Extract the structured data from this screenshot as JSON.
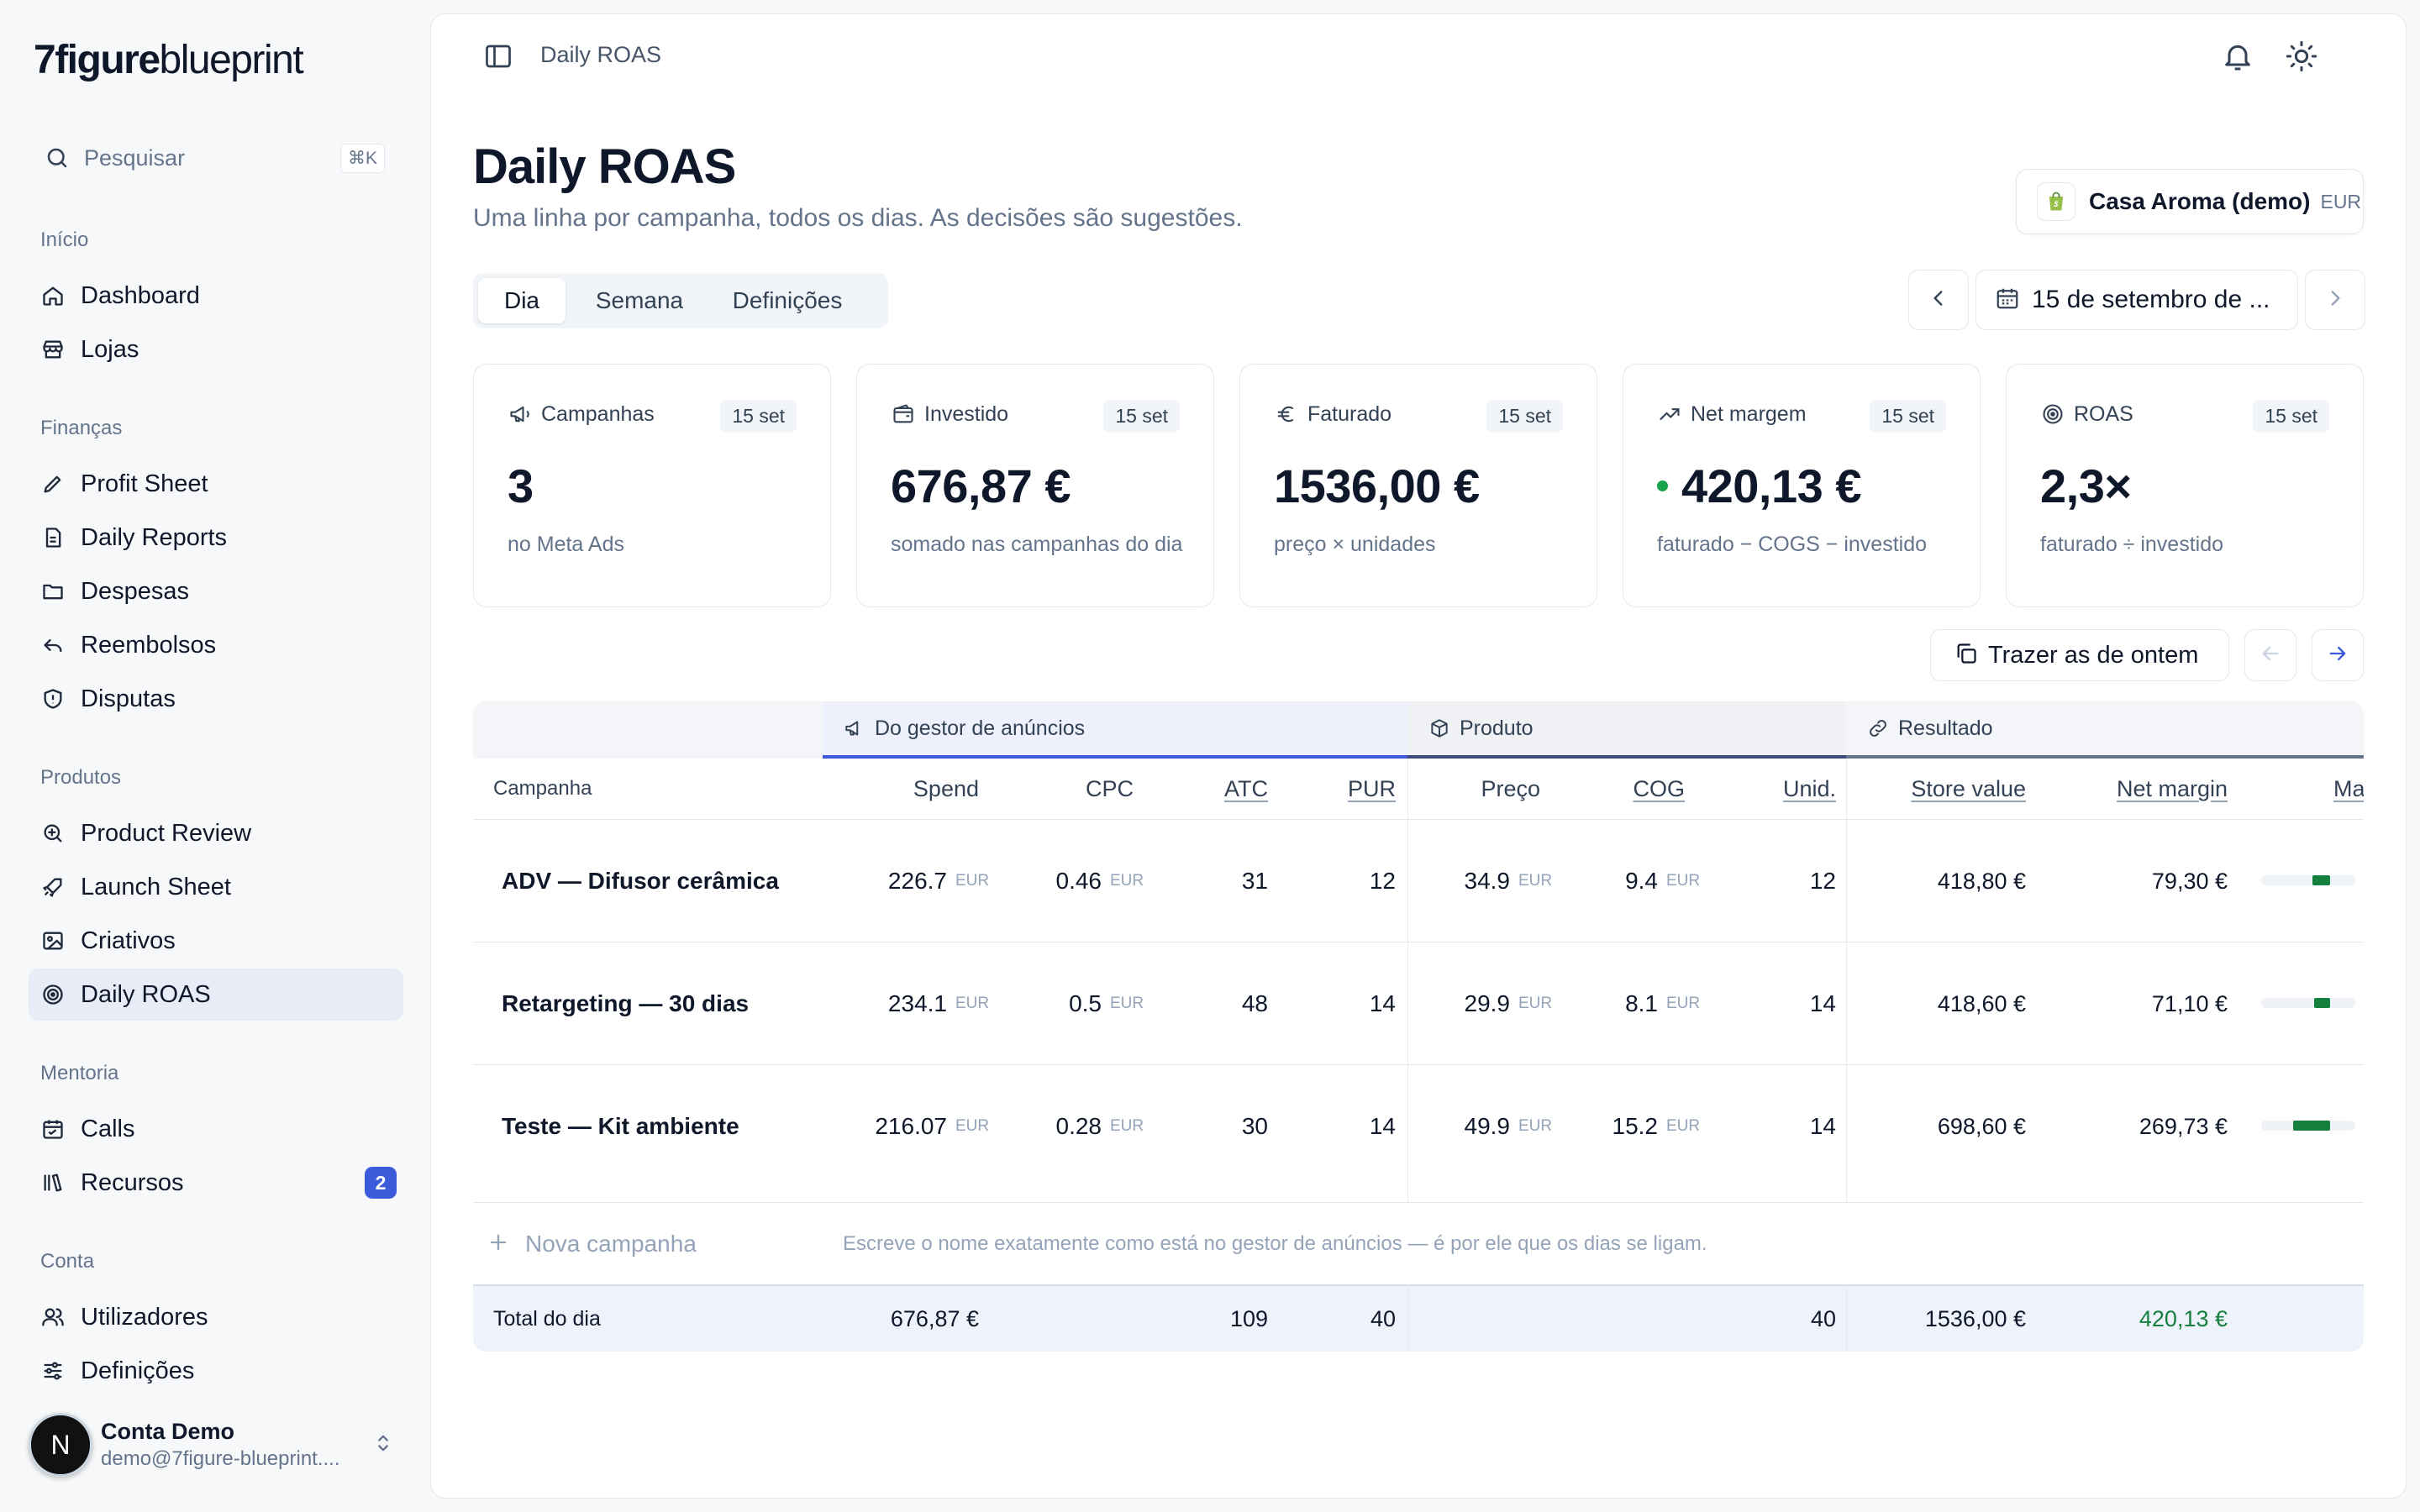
{
  "brand": {
    "bold": "7figure",
    "light": "blueprint"
  },
  "search": {
    "placeholder": "Pesquisar",
    "shortcut": "⌘K"
  },
  "sidebar": {
    "sections": [
      {
        "title": "Início",
        "items": [
          {
            "label": "Dashboard",
            "icon": "home-icon"
          },
          {
            "label": "Lojas",
            "icon": "store-icon"
          }
        ]
      },
      {
        "title": "Finanças",
        "items": [
          {
            "label": "Profit Sheet",
            "icon": "pencil-icon"
          },
          {
            "label": "Daily Reports",
            "icon": "file-icon"
          },
          {
            "label": "Despesas",
            "icon": "folder-icon"
          },
          {
            "label": "Reembolsos",
            "icon": "undo-icon"
          },
          {
            "label": "Disputas",
            "icon": "shield-icon"
          }
        ]
      },
      {
        "title": "Produtos",
        "items": [
          {
            "label": "Product Review",
            "icon": "search-zoom-icon"
          },
          {
            "label": "Launch Sheet",
            "icon": "rocket-icon"
          },
          {
            "label": "Criativos",
            "icon": "image-icon"
          },
          {
            "label": "Daily ROAS",
            "icon": "target-icon",
            "active": true
          }
        ]
      },
      {
        "title": "Mentoria",
        "items": [
          {
            "label": "Calls",
            "icon": "calendar-icon"
          },
          {
            "label": "Recursos",
            "icon": "library-icon",
            "badge": "2"
          }
        ]
      },
      {
        "title": "Conta",
        "items": [
          {
            "label": "Utilizadores",
            "icon": "users-icon"
          },
          {
            "label": "Definições",
            "icon": "sliders-icon"
          }
        ]
      }
    ]
  },
  "user": {
    "initial": "N",
    "name": "Conta Demo",
    "email": "demo@7figure-blueprint...."
  },
  "topbar": {
    "title": "Daily ROAS"
  },
  "page": {
    "title": "Daily ROAS",
    "subtitle": "Uma linha por campanha, todos os dias. As decisões são sugestões."
  },
  "store": {
    "name": "Casa Aroma (demo)",
    "currency": "EUR"
  },
  "tabs": [
    {
      "label": "Dia",
      "active": true
    },
    {
      "label": "Semana"
    },
    {
      "label": "Definições"
    }
  ],
  "date": {
    "label": "15 de setembro de ..."
  },
  "cards": [
    {
      "label": "Campanhas",
      "badge": "15 set",
      "value": "3",
      "sub": "no Meta Ads",
      "icon": "megaphone-icon"
    },
    {
      "label": "Investido",
      "badge": "15 set",
      "value": "676,87 €",
      "sub": "somado nas campanhas do dia",
      "icon": "wallet-icon"
    },
    {
      "label": "Faturado",
      "badge": "15 set",
      "value": "1536,00 €",
      "sub": "preço × unidades",
      "icon": "euro-icon"
    },
    {
      "label": "Net margem",
      "badge": "15 set",
      "value": "420,13 €",
      "sub": "faturado − COGS − investido",
      "icon": "trend-up-icon"
    },
    {
      "label": "ROAS",
      "badge": "15 set",
      "value": "2,3×",
      "sub": "faturado ÷ investido",
      "icon": "target-icon"
    }
  ],
  "actions": {
    "bring_yesterday": "Trazer as de ontem"
  },
  "table": {
    "groups": {
      "ads": "Do gestor de anúncios",
      "product": "Produto",
      "result": "Resultado"
    },
    "columns": {
      "campaign": "Campanha",
      "spend": "Spend",
      "cpc": "CPC",
      "atc": "ATC",
      "pur": "PUR",
      "price": "Preço",
      "cog": "COG",
      "units": "Unid.",
      "store_value": "Store value",
      "net_margin": "Net margin",
      "margin_short": "Ma"
    },
    "currency": "EUR",
    "rows": [
      {
        "name": "ADV — Difusor cerâmica",
        "spend": "226.7",
        "cpc": "0.46",
        "atc": "31",
        "pur": "12",
        "price": "34.9",
        "cog": "9.4",
        "units": "12",
        "store_value": "418,80 €",
        "net_margin": "79,30 €",
        "margin_fraction": 0.19
      },
      {
        "name": "Retargeting — 30 dias",
        "spend": "234.1",
        "cpc": "0.5",
        "atc": "48",
        "pur": "14",
        "price": "29.9",
        "cog": "8.1",
        "units": "14",
        "store_value": "418,60 €",
        "net_margin": "71,10 €",
        "margin_fraction": 0.17
      },
      {
        "name": "Teste — Kit ambiente",
        "spend": "216.07",
        "cpc": "0.28",
        "atc": "30",
        "pur": "14",
        "price": "49.9",
        "cog": "15.2",
        "units": "14",
        "store_value": "698,60 €",
        "net_margin": "269,73 €",
        "margin_fraction": 0.39
      }
    ],
    "new_row": {
      "label": "Nova campanha",
      "hint": "Escreve o nome exatamente como está no gestor de anúncios — é por ele que os dias se ligam."
    },
    "totals": {
      "label": "Total do dia",
      "spend": "676,87 €",
      "atc": "109",
      "pur": "40",
      "units": "40",
      "store_value": "1536,00 €",
      "net_margin": "420,13 €"
    }
  },
  "colors": {
    "accent": "#3b5bdb",
    "positive": "#15803d",
    "active_nav": "#e7ecf7",
    "group_ads_bg": "#eef1fb",
    "group_product_bg": "#eff1f5"
  }
}
